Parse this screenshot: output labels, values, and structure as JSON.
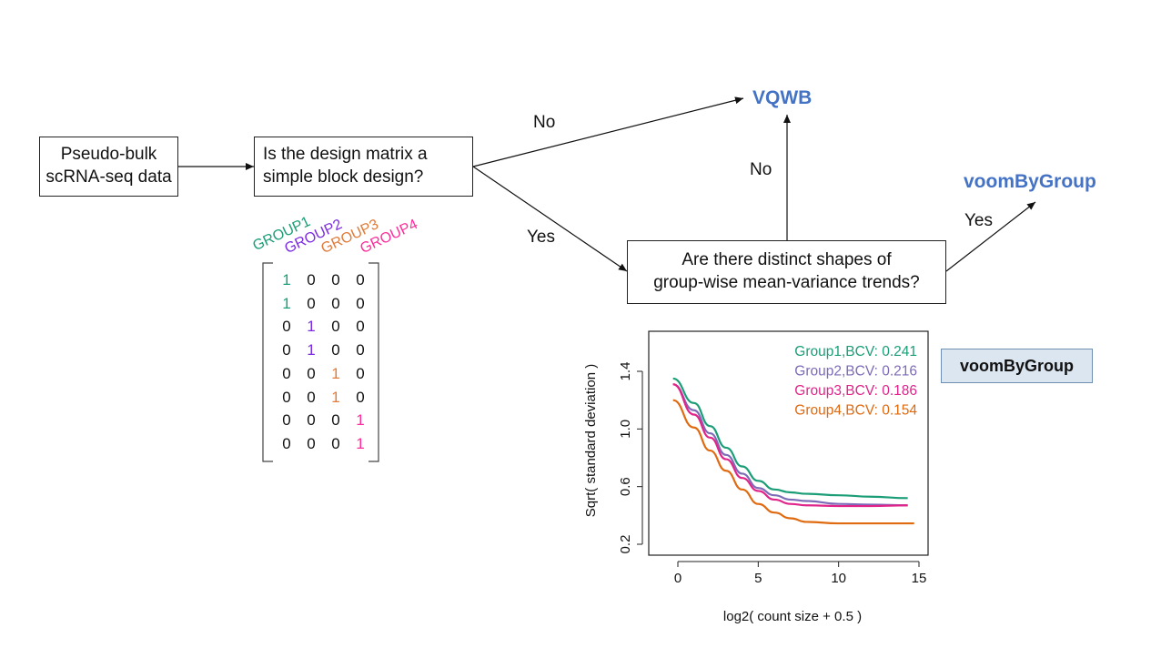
{
  "nodes": {
    "start": {
      "line1": "Pseudo-bulk",
      "line2": "scRNA-seq data"
    },
    "q1": {
      "line1": "Is the design matrix a",
      "line2": "simple block design?"
    },
    "q2": {
      "line1": "Are there distinct shapes of",
      "line2": "group-wise mean-variance trends?"
    },
    "vqwb": "VQWB",
    "voom_top": "voomByGroup",
    "voom_box": "voomByGroup"
  },
  "edges": {
    "q1_no": "No",
    "q1_yes": "Yes",
    "q2_no": "No",
    "q2_yes": "Yes"
  },
  "colors": {
    "group1": "#1b9e77",
    "group2": "#7b2be2",
    "group3": "#e07b39",
    "group4": "#ff2d9b",
    "blue": "#4472c4"
  },
  "design_matrix": {
    "groups": [
      "GROUP1",
      "GROUP2",
      "GROUP3",
      "GROUP4"
    ],
    "rows": [
      [
        1,
        0,
        0,
        0
      ],
      [
        1,
        0,
        0,
        0
      ],
      [
        0,
        1,
        0,
        0
      ],
      [
        0,
        1,
        0,
        0
      ],
      [
        0,
        0,
        1,
        0
      ],
      [
        0,
        0,
        1,
        0
      ],
      [
        0,
        0,
        0,
        1
      ],
      [
        0,
        0,
        0,
        1
      ]
    ]
  },
  "chart_data": {
    "type": "line",
    "title": "",
    "xlabel": "log2( count size + 0.5 )",
    "ylabel": "Sqrt( standard deviation )",
    "xlim": [
      -0.5,
      15
    ],
    "ylim": [
      0.2,
      1.62
    ],
    "xticks": [
      0,
      5,
      10,
      15
    ],
    "yticks": [
      0.2,
      0.6,
      1.0,
      1.4
    ],
    "series": [
      {
        "name": "Group1,BCV: 0.241",
        "color": "#1b9e77",
        "x": [
          -0.3,
          1,
          2,
          3,
          4,
          5,
          6,
          7,
          8,
          10,
          12,
          14.3
        ],
        "y": [
          1.35,
          1.18,
          1.02,
          0.87,
          0.74,
          0.64,
          0.58,
          0.56,
          0.55,
          0.54,
          0.53,
          0.52
        ]
      },
      {
        "name": "Group2,BCV: 0.216",
        "color": "#7e6bb8",
        "x": [
          -0.3,
          1,
          2,
          3,
          4,
          5,
          6,
          7,
          8,
          10,
          12,
          14.3
        ],
        "y": [
          1.31,
          1.13,
          0.97,
          0.82,
          0.69,
          0.59,
          0.54,
          0.51,
          0.5,
          0.48,
          0.475,
          0.47
        ]
      },
      {
        "name": "Group3,BCV: 0.186",
        "color": "#e0248a",
        "x": [
          -0.3,
          1,
          2,
          3,
          4,
          5,
          6,
          7,
          8,
          10,
          12,
          14.3
        ],
        "y": [
          1.31,
          1.1,
          0.94,
          0.79,
          0.66,
          0.57,
          0.51,
          0.48,
          0.47,
          0.465,
          0.465,
          0.47
        ]
      },
      {
        "name": "Group4,BCV: 0.154",
        "color": "#e06a10",
        "x": [
          -0.3,
          1,
          2,
          3,
          4,
          5,
          6,
          7,
          8,
          10,
          12,
          14.7
        ],
        "y": [
          1.2,
          1.01,
          0.85,
          0.71,
          0.58,
          0.48,
          0.42,
          0.38,
          0.355,
          0.345,
          0.345,
          0.345
        ]
      }
    ],
    "legend_position": "top-right"
  }
}
